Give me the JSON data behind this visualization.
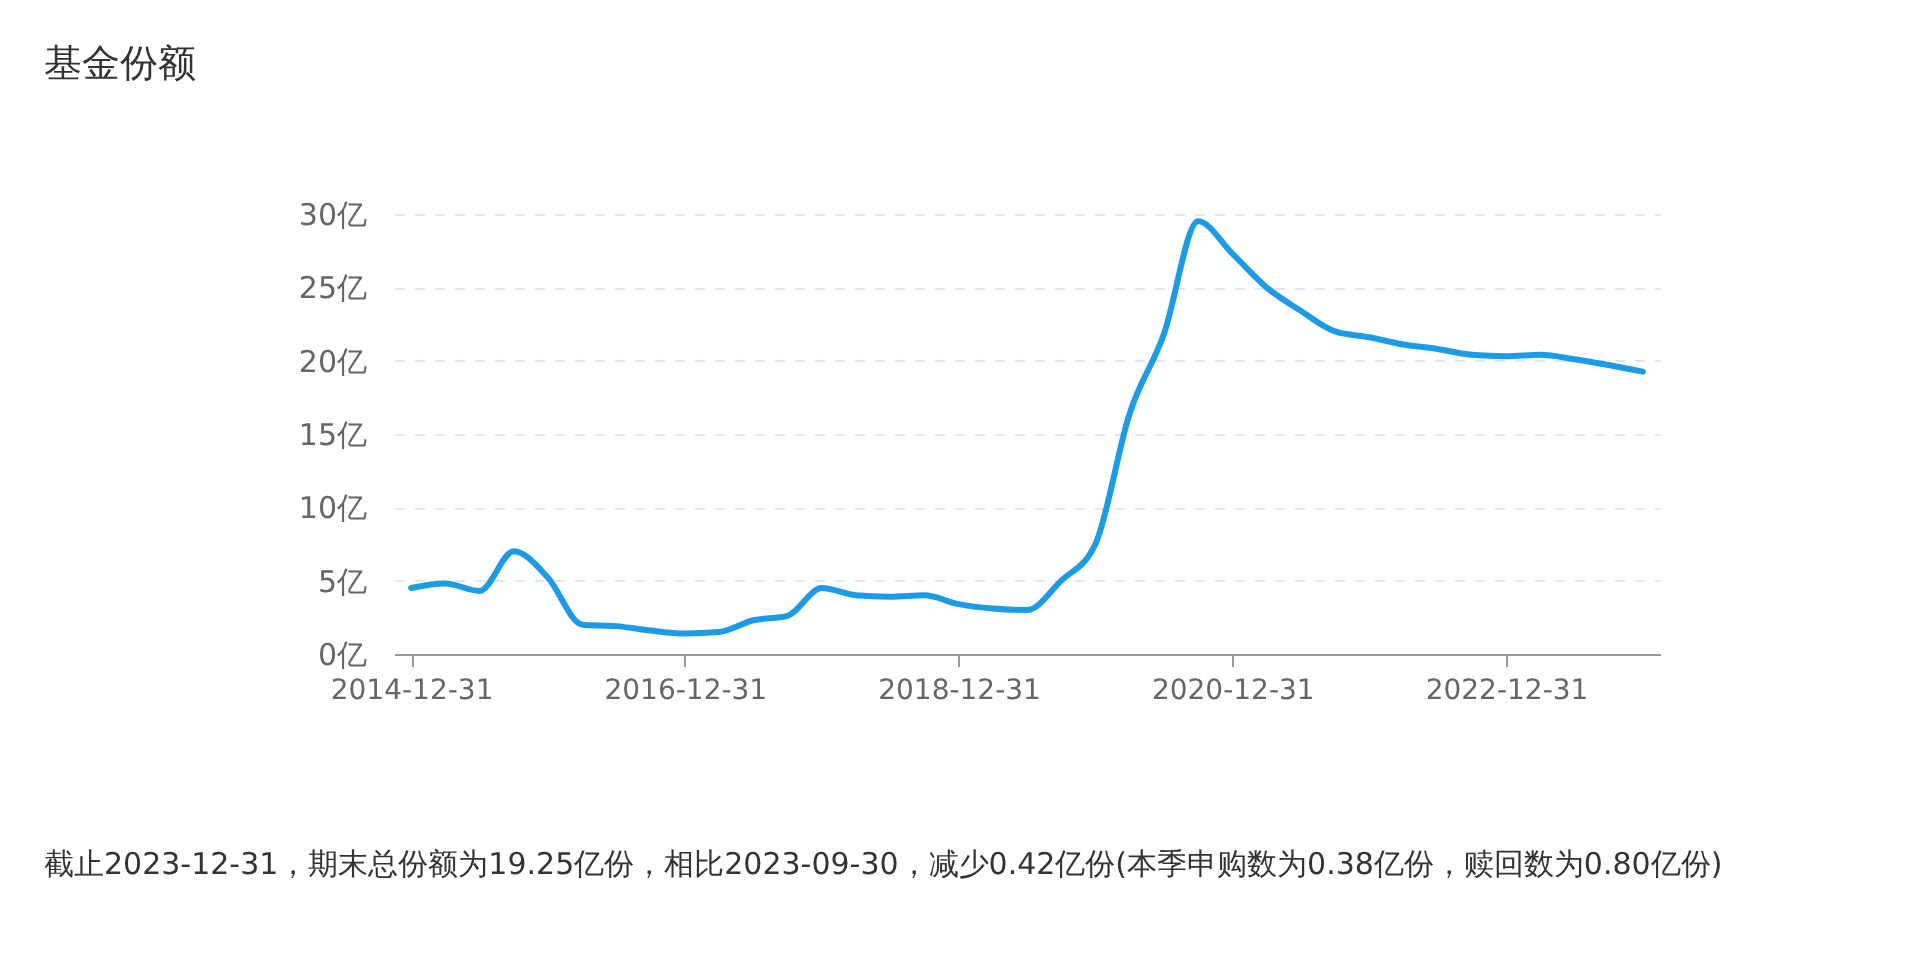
{
  "chart_data": {
    "type": "line",
    "title": "基金份额",
    "categories": [
      "2014-12-31",
      null,
      null,
      null,
      null,
      null,
      null,
      null,
      "2016-12-31",
      null,
      null,
      null,
      null,
      null,
      null,
      null,
      "2018-12-31",
      null,
      null,
      null,
      null,
      null,
      null,
      null,
      "2020-12-31",
      null,
      null,
      null,
      null,
      null,
      null,
      null,
      "2022-12-31",
      null,
      null,
      null,
      null
    ],
    "series": [
      {
        "color": "#1e9be6",
        "values": [
          4.5,
          4.8,
          4.3,
          7.0,
          5.2,
          2.0,
          1.9,
          1.6,
          1.4,
          1.5,
          2.3,
          2.6,
          4.5,
          4.0,
          3.9,
          4.0,
          3.4,
          3.1,
          3.0,
          5.0,
          7.5,
          16.4,
          21.8,
          29.5,
          27.3,
          25.0,
          23.4,
          22.0,
          21.6,
          21.1,
          20.8,
          20.4,
          20.3,
          20.4,
          20.1,
          19.7,
          19.25
        ]
      }
    ],
    "ylim": [
      0,
      30
    ],
    "yticks": [
      {
        "value": 0,
        "label": "0亿"
      },
      {
        "value": 5,
        "label": "5亿"
      },
      {
        "value": 10,
        "label": "10亿"
      },
      {
        "value": 15,
        "label": "15亿"
      },
      {
        "value": 20,
        "label": "20亿"
      },
      {
        "value": 25,
        "label": "25亿"
      },
      {
        "value": 30,
        "label": "30亿"
      }
    ],
    "grid": "y",
    "annotations": [
      "截止2023-12-31，期末总份额为19.25亿份，相比2023-09-30，减少0.42亿份(本季申购数为0.38亿份，赎回数为0.80亿份)"
    ]
  }
}
